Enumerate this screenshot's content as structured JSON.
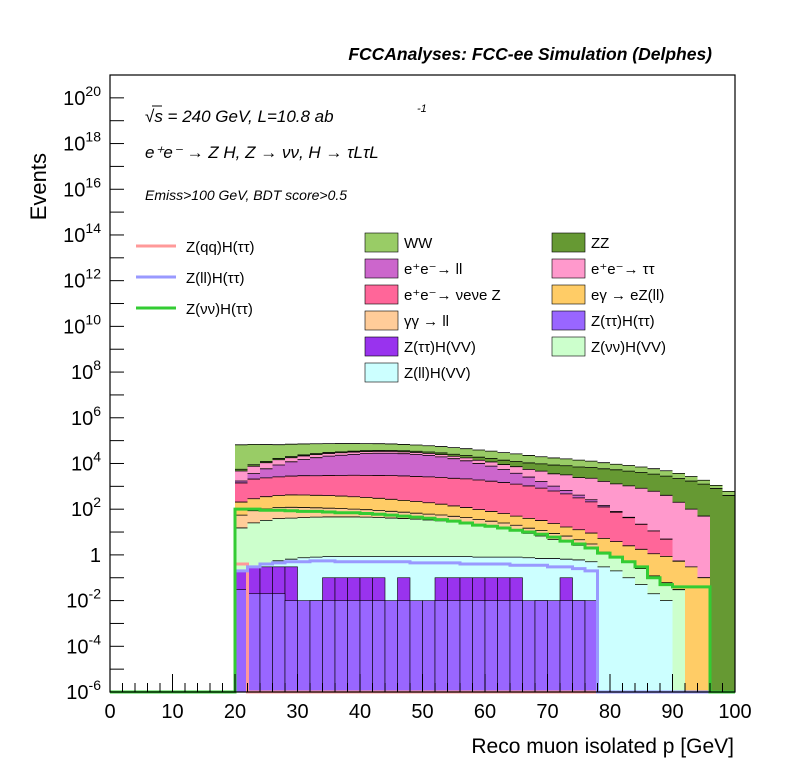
{
  "header": {
    "title": "FCCAnalyses: FCC-ee Simulation (Delphes)"
  },
  "annotations": {
    "line1": "√s = 240 GeV, L=10.8 ab",
    "line1_exp": "-1",
    "line2": "e⁺e⁻ → Z H, Z → νν, H → τLτL",
    "line3": "Emiss>100 GeV, BDT score>0.5"
  },
  "chart_data": {
    "type": "bar",
    "title": "FCCAnalyses: FCC-ee Simulation (Delphes)",
    "xlabel": "Reco muon isolated p [GeV]",
    "ylabel": "Events",
    "xlim": [
      0,
      100
    ],
    "ylim": [
      1e-06,
      1e+21
    ],
    "yscale": "log",
    "grid": false,
    "legend_position": "top",
    "x_ticks": [
      "0",
      "10",
      "20",
      "30",
      "40",
      "50",
      "60",
      "70",
      "80",
      "90",
      "100"
    ],
    "y_ticks": [
      "10^-6",
      "10^-4",
      "10^-2",
      "1",
      "10^2",
      "10^4",
      "10^6",
      "10^8",
      "10^10",
      "10^12",
      "10^14",
      "10^16",
      "10^18",
      "10^20"
    ],
    "bin_edges": [
      20,
      22,
      24,
      26,
      28,
      30,
      32,
      34,
      36,
      38,
      40,
      42,
      44,
      46,
      48,
      50,
      52,
      54,
      56,
      58,
      60,
      62,
      64,
      66,
      68,
      70,
      72,
      74,
      76,
      78,
      80,
      82,
      84,
      86,
      88,
      90,
      92,
      94,
      96,
      98,
      100
    ],
    "stacked_series": [
      {
        "name": "Z(ℓℓ)H(VV)",
        "color": "#ccffff",
        "values": [
          0.15,
          0.25,
          0.4,
          0.55,
          0.65,
          0.75,
          0.8,
          0.85,
          0.85,
          0.85,
          0.85,
          0.85,
          0.85,
          0.85,
          0.85,
          0.85,
          0.85,
          0.85,
          0.85,
          0.8,
          0.8,
          0.8,
          0.8,
          0.75,
          0.7,
          0.7,
          0.65,
          0.6,
          0.5,
          0.3,
          0.2,
          0.1,
          0.05,
          0.02,
          0.01,
          0,
          0,
          0,
          0,
          0
        ]
      },
      {
        "name": "Z(νν)H(VV)",
        "color": "#ccffcc",
        "values": [
          15,
          25,
          32,
          38,
          40,
          42,
          44,
          45,
          45,
          45,
          44,
          43,
          40,
          38,
          36,
          33,
          30,
          28,
          24,
          20,
          17,
          14,
          11,
          8,
          6,
          4,
          3,
          2,
          1.5,
          1,
          0.6,
          0.4,
          0.2,
          0.1,
          0.05,
          0.03,
          0,
          0,
          0,
          0
        ]
      },
      {
        "name": "γγ → ℓℓ",
        "color": "#ffcc99",
        "values": [
          40,
          60,
          70,
          80,
          80,
          75,
          70,
          65,
          60,
          55,
          50,
          45,
          40,
          35,
          30,
          27,
          25,
          20,
          18,
          15,
          12,
          10,
          8,
          6,
          5,
          4,
          3,
          2,
          1,
          0,
          0,
          0,
          0,
          0,
          0,
          0,
          0,
          0,
          0,
          0
        ]
      },
      {
        "name": "eγ → eZ(ℓℓ)",
        "color": "#ffcc66",
        "values": [
          150,
          200,
          250,
          280,
          300,
          300,
          290,
          280,
          270,
          250,
          230,
          210,
          190,
          170,
          150,
          130,
          110,
          90,
          75,
          60,
          50,
          40,
          30,
          25,
          20,
          15,
          10,
          8,
          6,
          4,
          3,
          2,
          1.5,
          1,
          0.8,
          0.5,
          0.3,
          0.1,
          0,
          0
        ]
      },
      {
        "name": "e⁺e⁻ → νeνe Z",
        "color": "#ff6699",
        "values": [
          1200,
          1800,
          2000,
          2200,
          2400,
          2500,
          2500,
          2600,
          2600,
          2700,
          2700,
          2700,
          2700,
          2600,
          2500,
          2400,
          2300,
          2100,
          2000,
          1800,
          1600,
          1400,
          1200,
          1000,
          800,
          600,
          450,
          300,
          200,
          120,
          70,
          40,
          20,
          10,
          4,
          0,
          0,
          0,
          0,
          0
        ]
      },
      {
        "name": "e⁺e⁻ → ℓℓ",
        "color": "#cc66cc",
        "values": [
          300,
          1500,
          3500,
          6000,
          9000,
          12000,
          15000,
          18000,
          20000,
          22000,
          24000,
          25000,
          25000,
          24000,
          22000,
          20000,
          17000,
          14000,
          11000,
          8000,
          6000,
          4000,
          2500,
          1500,
          800,
          400,
          200,
          100,
          50,
          20,
          5,
          2,
          0,
          0,
          0,
          0,
          0,
          0,
          0,
          0
        ]
      },
      {
        "name": "e⁺e⁻ → ττ",
        "color": "#ff99cc",
        "values": [
          3000,
          4000,
          5000,
          6000,
          6000,
          6500,
          6500,
          6500,
          6500,
          6500,
          6000,
          6000,
          6000,
          5500,
          5500,
          5000,
          5000,
          4500,
          4500,
          4000,
          4000,
          3500,
          3500,
          3000,
          3000,
          2500,
          2500,
          2000,
          2000,
          1500,
          1200,
          1000,
          800,
          600,
          400,
          200,
          100,
          50,
          0,
          0
        ]
      },
      {
        "name": "ZZ",
        "color": "#669933",
        "values": [
          900,
          1200,
          1500,
          1800,
          2000,
          2200,
          2400,
          2600,
          2800,
          3000,
          3200,
          3400,
          3600,
          3800,
          4000,
          4200,
          4400,
          4600,
          4800,
          5000,
          5000,
          5000,
          5000,
          5000,
          5000,
          5000,
          4800,
          4600,
          4400,
          4200,
          4000,
          3600,
          3200,
          2800,
          2400,
          2000,
          1600,
          1200,
          800,
          400
        ]
      },
      {
        "name": "WW",
        "color": "#99cc66",
        "values": [
          60000,
          60000,
          55000,
          50000,
          50000,
          48000,
          46000,
          44000,
          42000,
          40000,
          38000,
          36000,
          34000,
          32000,
          30000,
          28000,
          26000,
          24000,
          22000,
          20000,
          18000,
          16000,
          14000,
          12000,
          10000,
          9000,
          8000,
          7000,
          6000,
          5000,
          4000,
          3500,
          3000,
          2500,
          2000,
          1500,
          1000,
          600,
          300,
          200
        ]
      }
    ],
    "sparse_series": [
      {
        "name": "Z(ττ)H(VV)",
        "color": "#9933ee",
        "values": [
          0.2,
          0.3,
          0.3,
          0.3,
          0.3,
          8e-05,
          0.01,
          0.1,
          0.1,
          0.1,
          0.1,
          0.1,
          8e-05,
          0.1,
          8e-05,
          8e-05,
          0.1,
          0.1,
          0.1,
          0.1,
          0.1,
          0.1,
          0.1,
          3e-05,
          0.01,
          3e-05,
          0.1,
          0.01,
          1e-05,
          0,
          0,
          0,
          0,
          0,
          0,
          0,
          0,
          0,
          0,
          0
        ]
      },
      {
        "name": "Z(ττ)H(ττ)",
        "color": "#9966ff",
        "values": [
          0.03,
          0.02,
          0.02,
          0.02,
          0.01,
          0.01,
          0.01,
          0.01,
          0.01,
          0.01,
          0.01,
          0.01,
          0.01,
          0.01,
          0.01,
          0.01,
          0.01,
          0.01,
          0.01,
          0.01,
          0.01,
          0.01,
          0.01,
          0.01,
          0.01,
          0.01,
          0.01,
          0.01,
          0.01,
          0,
          0,
          0,
          0,
          0,
          0,
          0,
          0,
          0,
          0,
          0
        ]
      }
    ],
    "overlay_series": [
      {
        "name": "Z(qq)H(ττ)",
        "color": "#ff9999",
        "values": [
          0.4,
          0,
          0,
          0,
          0,
          0,
          0,
          0,
          0,
          0,
          0,
          0,
          0,
          0,
          0,
          0,
          0,
          0,
          0,
          0,
          0,
          0,
          0,
          0,
          0,
          0,
          0,
          0,
          0,
          0,
          0,
          0,
          0,
          0,
          0,
          0,
          0,
          0,
          0,
          0
        ]
      },
      {
        "name": "Z(ℓℓ)H(ττ)",
        "color": "#9999ff",
        "values": [
          0.2,
          0.3,
          0.4,
          0.45,
          0.5,
          0.5,
          0.55,
          0.55,
          0.5,
          0.5,
          0.5,
          0.5,
          0.5,
          0.5,
          0.45,
          0.45,
          0.45,
          0.45,
          0.4,
          0.4,
          0.4,
          0.4,
          0.35,
          0.35,
          0.35,
          0.3,
          0.3,
          0.25,
          0.2,
          0,
          0,
          0,
          0,
          0,
          0,
          0,
          0,
          0,
          0,
          0
        ]
      },
      {
        "name": "Z(νν)H(ττ)",
        "color": "#33cc33",
        "values": [
          100,
          100,
          90,
          90,
          85,
          80,
          80,
          75,
          70,
          70,
          65,
          60,
          55,
          50,
          45,
          40,
          35,
          30,
          25,
          20,
          18,
          15,
          12,
          10,
          8,
          6,
          4,
          3,
          2,
          1.2,
          0.8,
          0.5,
          0.3,
          0.1,
          0.05,
          0.04,
          0.04,
          0.04,
          0,
          0
        ]
      }
    ]
  },
  "legend": {
    "left": [
      {
        "label": "Z(qq)H(ττ)",
        "color": "#ff9999"
      },
      {
        "label": "Z(ll)H(ττ)",
        "color": "#9999ff"
      },
      {
        "label": "Z(νν)H(ττ)",
        "color": "#33cc33"
      }
    ],
    "mid": [
      {
        "label": "WW",
        "color": "#99cc66"
      },
      {
        "label": "e⁺e⁻→ ll",
        "color": "#cc66cc"
      },
      {
        "label": "e⁺e⁻→ νeνe Z",
        "color": "#ff6699"
      },
      {
        "label": "γγ → ll",
        "color": "#ffcc99"
      },
      {
        "label": "Z(ττ)H(VV)",
        "color": "#9933ee"
      },
      {
        "label": "Z(ll)H(VV)",
        "color": "#ccffff"
      }
    ],
    "right": [
      {
        "label": "ZZ",
        "color": "#669933"
      },
      {
        "label": "e⁺e⁻→ ττ",
        "color": "#ff99cc"
      },
      {
        "label": "eγ → eZ(ll)",
        "color": "#ffcc66"
      },
      {
        "label": "Z(ττ)H(ττ)",
        "color": "#9966ff"
      },
      {
        "label": "Z(νν)H(VV)",
        "color": "#ccffcc"
      }
    ]
  }
}
